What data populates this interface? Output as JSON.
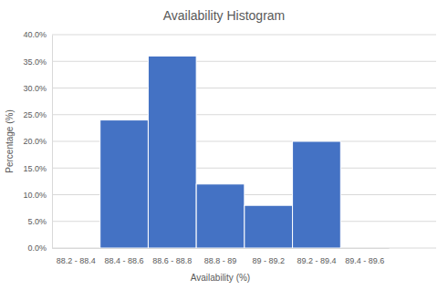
{
  "chart_data": {
    "type": "histogram",
    "title": "Availability Histogram",
    "x_label": "Availability (%)",
    "y_label": "Percentage (%)",
    "categories": [
      "88.2 - 88.4",
      "88.4 - 88.6",
      "88.6 - 88.8",
      "88.8 - 89",
      "89 - 89.2",
      "89.2 - 89.4",
      "89.4 - 89.6"
    ],
    "bins": [
      88.2,
      88.4,
      88.6,
      88.8,
      89.0,
      89.2,
      89.4,
      89.6
    ],
    "values": [
      0,
      24,
      36,
      12,
      8,
      20,
      0
    ],
    "color": "#4472c4",
    "ylim": [
      0,
      40
    ],
    "yticks": [
      {
        "value": 0,
        "label": "0.0%"
      },
      {
        "value": 5,
        "label": "5.0%"
      },
      {
        "value": 10,
        "label": "10.0%"
      },
      {
        "value": 15,
        "label": "15.0%"
      },
      {
        "value": 20,
        "label": "20.0%"
      },
      {
        "value": 25,
        "label": "25.0%"
      },
      {
        "value": 30,
        "label": "30.0%"
      },
      {
        "value": 35,
        "label": "35.0%"
      },
      {
        "value": 40,
        "label": "40.0%"
      }
    ],
    "grid": true
  }
}
